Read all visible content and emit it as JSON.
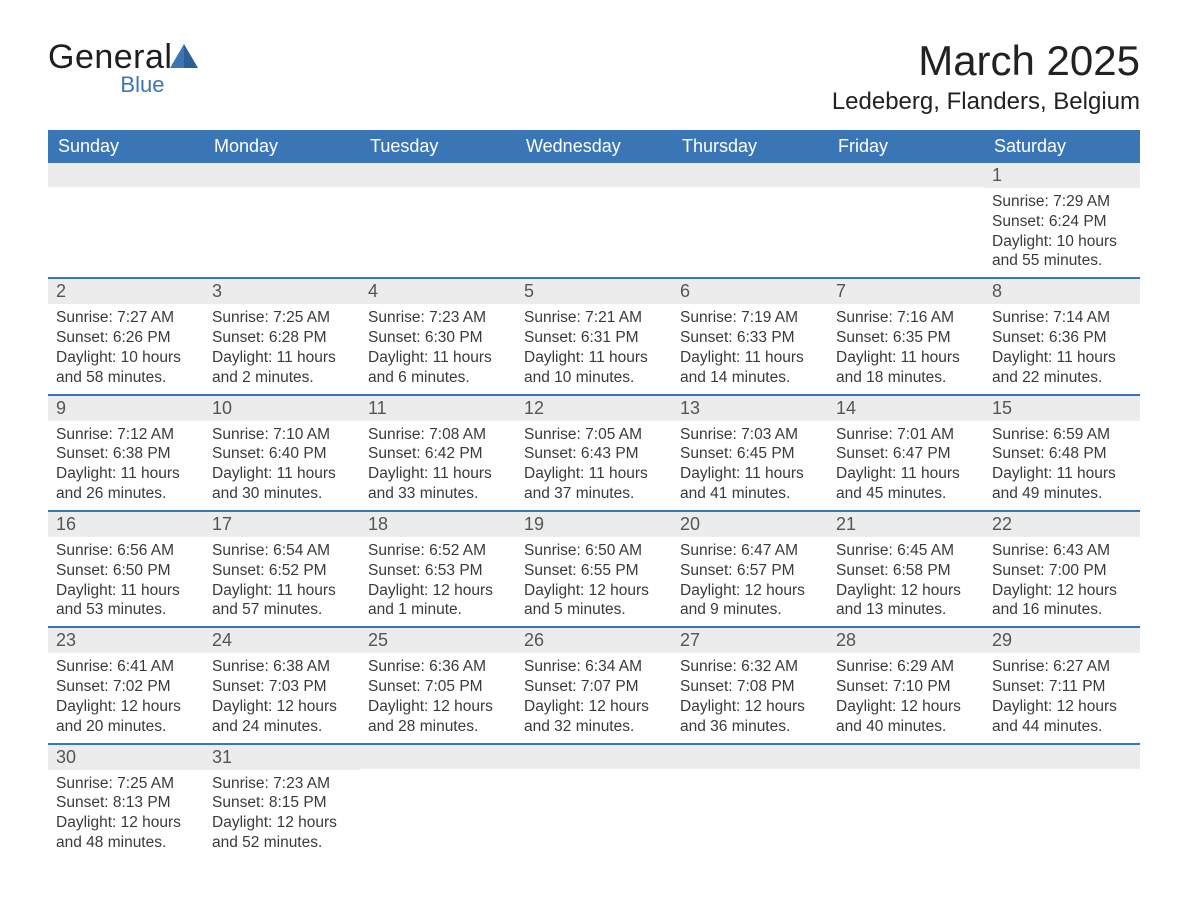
{
  "logo": {
    "general": "General",
    "blue": "Blue",
    "accent_color": "#3a76b5"
  },
  "header": {
    "title": "March 2025",
    "location": "Ledeberg, Flanders, Belgium"
  },
  "colors": {
    "header_bg": "#3a76b5",
    "header_text": "#ffffff",
    "row_divider": "#3a76b5",
    "daynum_bg": "#ececec",
    "body_text": "#3a3a3a",
    "page_bg": "#ffffff"
  },
  "calendar": {
    "day_headers": [
      "Sunday",
      "Monday",
      "Tuesday",
      "Wednesday",
      "Thursday",
      "Friday",
      "Saturday"
    ],
    "weeks": [
      [
        null,
        null,
        null,
        null,
        null,
        null,
        {
          "day": "1",
          "sunrise": "Sunrise: 7:29 AM",
          "sunset": "Sunset: 6:24 PM",
          "daylight": "Daylight: 10 hours and 55 minutes."
        }
      ],
      [
        {
          "day": "2",
          "sunrise": "Sunrise: 7:27 AM",
          "sunset": "Sunset: 6:26 PM",
          "daylight": "Daylight: 10 hours and 58 minutes."
        },
        {
          "day": "3",
          "sunrise": "Sunrise: 7:25 AM",
          "sunset": "Sunset: 6:28 PM",
          "daylight": "Daylight: 11 hours and 2 minutes."
        },
        {
          "day": "4",
          "sunrise": "Sunrise: 7:23 AM",
          "sunset": "Sunset: 6:30 PM",
          "daylight": "Daylight: 11 hours and 6 minutes."
        },
        {
          "day": "5",
          "sunrise": "Sunrise: 7:21 AM",
          "sunset": "Sunset: 6:31 PM",
          "daylight": "Daylight: 11 hours and 10 minutes."
        },
        {
          "day": "6",
          "sunrise": "Sunrise: 7:19 AM",
          "sunset": "Sunset: 6:33 PM",
          "daylight": "Daylight: 11 hours and 14 minutes."
        },
        {
          "day": "7",
          "sunrise": "Sunrise: 7:16 AM",
          "sunset": "Sunset: 6:35 PM",
          "daylight": "Daylight: 11 hours and 18 minutes."
        },
        {
          "day": "8",
          "sunrise": "Sunrise: 7:14 AM",
          "sunset": "Sunset: 6:36 PM",
          "daylight": "Daylight: 11 hours and 22 minutes."
        }
      ],
      [
        {
          "day": "9",
          "sunrise": "Sunrise: 7:12 AM",
          "sunset": "Sunset: 6:38 PM",
          "daylight": "Daylight: 11 hours and 26 minutes."
        },
        {
          "day": "10",
          "sunrise": "Sunrise: 7:10 AM",
          "sunset": "Sunset: 6:40 PM",
          "daylight": "Daylight: 11 hours and 30 minutes."
        },
        {
          "day": "11",
          "sunrise": "Sunrise: 7:08 AM",
          "sunset": "Sunset: 6:42 PM",
          "daylight": "Daylight: 11 hours and 33 minutes."
        },
        {
          "day": "12",
          "sunrise": "Sunrise: 7:05 AM",
          "sunset": "Sunset: 6:43 PM",
          "daylight": "Daylight: 11 hours and 37 minutes."
        },
        {
          "day": "13",
          "sunrise": "Sunrise: 7:03 AM",
          "sunset": "Sunset: 6:45 PM",
          "daylight": "Daylight: 11 hours and 41 minutes."
        },
        {
          "day": "14",
          "sunrise": "Sunrise: 7:01 AM",
          "sunset": "Sunset: 6:47 PM",
          "daylight": "Daylight: 11 hours and 45 minutes."
        },
        {
          "day": "15",
          "sunrise": "Sunrise: 6:59 AM",
          "sunset": "Sunset: 6:48 PM",
          "daylight": "Daylight: 11 hours and 49 minutes."
        }
      ],
      [
        {
          "day": "16",
          "sunrise": "Sunrise: 6:56 AM",
          "sunset": "Sunset: 6:50 PM",
          "daylight": "Daylight: 11 hours and 53 minutes."
        },
        {
          "day": "17",
          "sunrise": "Sunrise: 6:54 AM",
          "sunset": "Sunset: 6:52 PM",
          "daylight": "Daylight: 11 hours and 57 minutes."
        },
        {
          "day": "18",
          "sunrise": "Sunrise: 6:52 AM",
          "sunset": "Sunset: 6:53 PM",
          "daylight": "Daylight: 12 hours and 1 minute."
        },
        {
          "day": "19",
          "sunrise": "Sunrise: 6:50 AM",
          "sunset": "Sunset: 6:55 PM",
          "daylight": "Daylight: 12 hours and 5 minutes."
        },
        {
          "day": "20",
          "sunrise": "Sunrise: 6:47 AM",
          "sunset": "Sunset: 6:57 PM",
          "daylight": "Daylight: 12 hours and 9 minutes."
        },
        {
          "day": "21",
          "sunrise": "Sunrise: 6:45 AM",
          "sunset": "Sunset: 6:58 PM",
          "daylight": "Daylight: 12 hours and 13 minutes."
        },
        {
          "day": "22",
          "sunrise": "Sunrise: 6:43 AM",
          "sunset": "Sunset: 7:00 PM",
          "daylight": "Daylight: 12 hours and 16 minutes."
        }
      ],
      [
        {
          "day": "23",
          "sunrise": "Sunrise: 6:41 AM",
          "sunset": "Sunset: 7:02 PM",
          "daylight": "Daylight: 12 hours and 20 minutes."
        },
        {
          "day": "24",
          "sunrise": "Sunrise: 6:38 AM",
          "sunset": "Sunset: 7:03 PM",
          "daylight": "Daylight: 12 hours and 24 minutes."
        },
        {
          "day": "25",
          "sunrise": "Sunrise: 6:36 AM",
          "sunset": "Sunset: 7:05 PM",
          "daylight": "Daylight: 12 hours and 28 minutes."
        },
        {
          "day": "26",
          "sunrise": "Sunrise: 6:34 AM",
          "sunset": "Sunset: 7:07 PM",
          "daylight": "Daylight: 12 hours and 32 minutes."
        },
        {
          "day": "27",
          "sunrise": "Sunrise: 6:32 AM",
          "sunset": "Sunset: 7:08 PM",
          "daylight": "Daylight: 12 hours and 36 minutes."
        },
        {
          "day": "28",
          "sunrise": "Sunrise: 6:29 AM",
          "sunset": "Sunset: 7:10 PM",
          "daylight": "Daylight: 12 hours and 40 minutes."
        },
        {
          "day": "29",
          "sunrise": "Sunrise: 6:27 AM",
          "sunset": "Sunset: 7:11 PM",
          "daylight": "Daylight: 12 hours and 44 minutes."
        }
      ],
      [
        {
          "day": "30",
          "sunrise": "Sunrise: 7:25 AM",
          "sunset": "Sunset: 8:13 PM",
          "daylight": "Daylight: 12 hours and 48 minutes."
        },
        {
          "day": "31",
          "sunrise": "Sunrise: 7:23 AM",
          "sunset": "Sunset: 8:15 PM",
          "daylight": "Daylight: 12 hours and 52 minutes."
        },
        null,
        null,
        null,
        null,
        null
      ]
    ]
  }
}
